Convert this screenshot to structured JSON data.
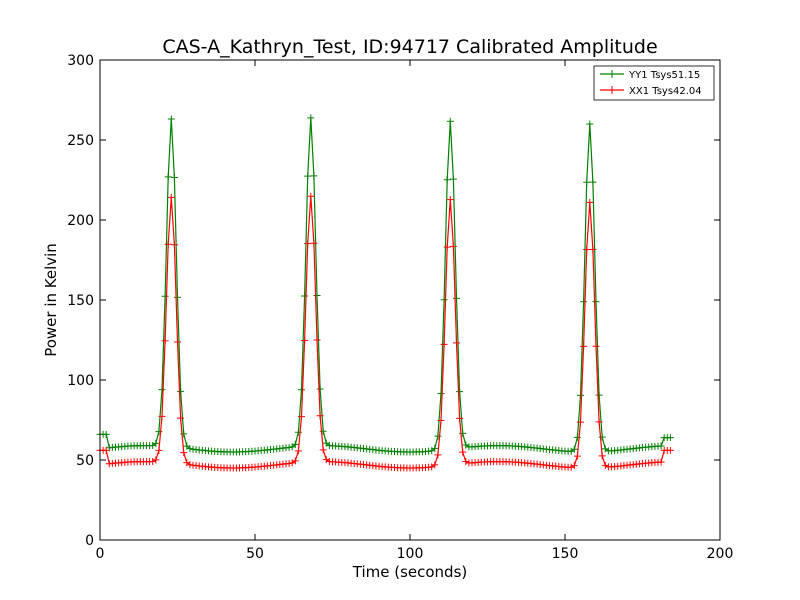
{
  "chart_data": {
    "type": "line",
    "title": "CAS-A_Kathryn_Test, ID:94717 Calibrated Amplitude",
    "xlabel": "Time (seconds)",
    "ylabel": "Power in Kelvin",
    "xlim": [
      0,
      200
    ],
    "ylim": [
      0,
      300
    ],
    "xticks": [
      0,
      50,
      100,
      150,
      200
    ],
    "yticks": [
      0,
      50,
      100,
      150,
      200,
      250,
      300
    ],
    "grid": false,
    "legend_position": "top-right",
    "marker": "+",
    "series": [
      {
        "name": "YY1 Tsys51.15",
        "color": "#008000",
        "x_start": 0,
        "x_end": 184,
        "step": 1,
        "baseline": 57,
        "peak_extra": 205
      },
      {
        "name": "XX1 Tsys42.04",
        "color": "#ff0000",
        "x_start": 0,
        "x_end": 184,
        "step": 1,
        "baseline": 47,
        "peak_extra": 166
      }
    ],
    "peaks_x": [
      23,
      68,
      113,
      158
    ],
    "peak_width": 1.6,
    "edge_values": {
      "YY1 Tsys51.15": [
        66,
        64
      ],
      "XX1 Tsys42.04": [
        56,
        56
      ]
    }
  }
}
